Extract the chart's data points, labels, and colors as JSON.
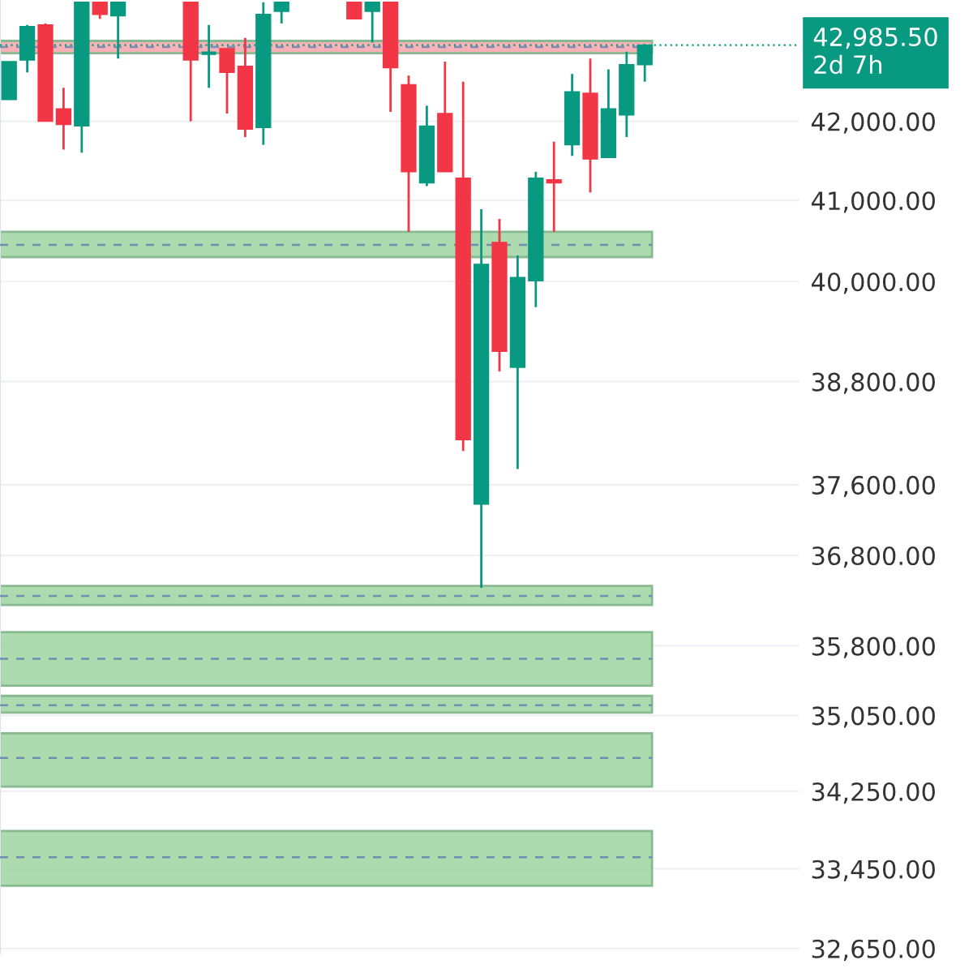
{
  "chart_data": {
    "type": "candlestick",
    "categories": [
      null,
      null,
      null,
      null,
      null,
      null,
      null,
      null,
      null,
      null,
      null,
      null,
      null,
      null,
      null,
      null,
      null,
      null,
      null,
      null,
      null,
      null,
      null,
      null,
      null,
      null,
      null,
      null,
      null,
      null,
      null,
      null,
      null,
      null,
      null,
      null,
      null,
      null,
      null,
      null,
      null,
      null,
      null,
      null
    ],
    "ohlc": [
      [
        42280,
        42770,
        42280,
        42770
      ],
      [
        42790,
        43250,
        42630,
        43230
      ],
      [
        43250,
        43270,
        42000,
        42000
      ],
      [
        42160,
        42430,
        41640,
        41960
      ],
      [
        41940,
        43550,
        41600,
        43550
      ],
      [
        43550,
        43550,
        43330,
        43390
      ],
      [
        43370,
        43550,
        42810,
        43550
      ],
      null,
      null,
      null,
      [
        43550,
        43550,
        42000,
        42790
      ],
      [
        42880,
        43250,
        42430,
        42880
      ],
      [
        42940,
        42940,
        42100,
        42630
      ],
      [
        42710,
        43080,
        41800,
        41900
      ],
      [
        41920,
        43550,
        41700,
        43390
      ],
      [
        43430,
        43550,
        43270,
        43550
      ],
      null,
      null,
      null,
      [
        43550,
        43550,
        43330,
        43330
      ],
      [
        43430,
        43550,
        43020,
        43550
      ],
      [
        43550,
        43550,
        42120,
        42690
      ],
      [
        42470,
        42590,
        40610,
        41360
      ],
      [
        41220,
        42200,
        41180,
        41940
      ],
      [
        42100,
        42770,
        41360,
        41360
      ],
      [
        41280,
        42510,
        37990,
        38120
      ],
      [
        37380,
        40890,
        36440,
        40210
      ],
      [
        40480,
        40770,
        38920,
        39160
      ],
      [
        38970,
        40320,
        37780,
        40050
      ],
      [
        40010,
        41360,
        39690,
        41280
      ],
      [
        41260,
        41740,
        40610,
        41220
      ],
      [
        41700,
        42610,
        41560,
        42380
      ],
      [
        42360,
        42810,
        41100,
        41520
      ],
      [
        41540,
        42670,
        41540,
        42160
      ],
      [
        42080,
        42900,
        41800,
        42730
      ],
      [
        42730,
        43000,
        42510,
        42985.5
      ],
      null,
      null,
      null,
      null,
      null,
      null,
      null,
      null
    ],
    "colors": [
      "#089981",
      "#089981",
      "#f23645",
      "#f23645",
      "#089981",
      "#f23645",
      "#089981",
      null,
      null,
      null,
      "#f23645",
      "#089981",
      "#f23645",
      "#f23645",
      "#089981",
      "#089981",
      null,
      null,
      null,
      "#f23645",
      "#089981",
      "#f23645",
      "#f23645",
      "#089981",
      "#f23645",
      "#f23645",
      "#089981",
      "#f23645",
      "#089981",
      "#089981",
      "#f23645",
      "#089981",
      "#f23645",
      "#089981",
      "#089981",
      "#089981",
      null,
      null,
      null,
      null,
      null,
      null,
      null,
      null
    ],
    "log": true,
    "ylim": [
      32600,
      43580
    ],
    "yticks": [
      {
        "value": 42000,
        "label": "42,000.00"
      },
      {
        "value": 41000,
        "label": "41,000.00"
      },
      {
        "value": 40000,
        "label": "40,000.00"
      },
      {
        "value": 38800,
        "label": "38,800.00"
      },
      {
        "value": 37600,
        "label": "37,600.00"
      },
      {
        "value": 36800,
        "label": "36,800.00"
      },
      {
        "value": 35800,
        "label": "35,800.00"
      },
      {
        "value": 35050,
        "label": "35,050.00"
      },
      {
        "value": 34250,
        "label": "34,250.00"
      },
      {
        "value": 33450,
        "label": "33,450.00"
      },
      {
        "value": 32650,
        "label": "32,650.00"
      }
    ],
    "tick_labels": "y",
    "grid": "y",
    "bands": [
      {
        "axis": "y",
        "from": 42880,
        "to": 43040,
        "color": "#f7a9b0"
      },
      {
        "axis": "y",
        "from": 40300,
        "to": 40610,
        "color": "#a5d6a7"
      },
      {
        "axis": "y",
        "from": 36250,
        "to": 36460,
        "color": "#a5d6a7"
      },
      {
        "axis": "y",
        "from": 35370,
        "to": 35950,
        "color": "#a5d6a7"
      },
      {
        "axis": "y",
        "from": 35080,
        "to": 35260,
        "color": "#a5d6a7"
      },
      {
        "axis": "y",
        "from": 34300,
        "to": 34860,
        "color": "#a5d6a7"
      },
      {
        "axis": "y",
        "from": 33280,
        "to": 33840,
        "color": "#a5d6a7"
      }
    ],
    "ref_lines": [
      {
        "axis": "y",
        "value": 42960,
        "color": "#7b8eb8",
        "line_style": "dashed"
      },
      {
        "axis": "y",
        "value": 40450,
        "color": "#6f8fb0",
        "line_style": "dashed"
      },
      {
        "axis": "y",
        "value": 36350,
        "color": "#6f8fb0",
        "line_style": "dashed"
      },
      {
        "axis": "y",
        "value": 35660,
        "color": "#6f8fb0",
        "line_style": "dashed"
      },
      {
        "axis": "y",
        "value": 35160,
        "color": "#6f8fb0",
        "line_style": "dashed"
      },
      {
        "axis": "y",
        "value": 34600,
        "color": "#6f8fb0",
        "line_style": "dashed"
      },
      {
        "axis": "y",
        "value": 33570,
        "color": "#6f8fb0",
        "line_style": "dashed"
      },
      {
        "axis": "y",
        "value": 42985.5,
        "label": "42,985.50\n2d 7h",
        "color": "#089981",
        "line_style": "dotted"
      }
    ]
  }
}
